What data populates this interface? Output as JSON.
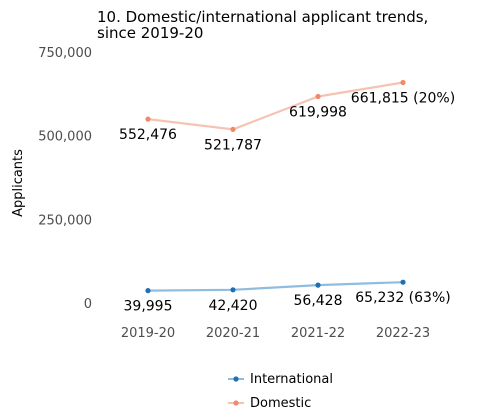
{
  "chart_data": {
    "type": "line",
    "title_lines": [
      "10. Domestic/international applicant trends,",
      "since 2019-20"
    ],
    "xlabel": "",
    "ylabel": "Applicants",
    "categories": [
      "2019-20",
      "2020-21",
      "2021-22",
      "2022-23"
    ],
    "ylim": [
      0,
      750000
    ],
    "yticks": [
      0,
      250000,
      500000,
      750000
    ],
    "ytick_labels": [
      "0",
      "250,000",
      "500,000",
      "750,000"
    ],
    "grid": false,
    "legend_position": "bottom-center",
    "series": [
      {
        "name": "International",
        "color": "#1f6fb2",
        "line_color": "#8fbde0",
        "values": [
          39995,
          42420,
          56428,
          65232
        ],
        "labels": [
          "39,995",
          "42,420",
          "56,428",
          "65,232 (63%)"
        ]
      },
      {
        "name": "Domestic",
        "color": "#f08a6a",
        "line_color": "#f6c2b2",
        "values": [
          552476,
          521787,
          619998,
          661815
        ],
        "labels": [
          "552,476",
          "521,787",
          "619,998",
          "661,815 (20%)"
        ]
      }
    ],
    "text_color": "#000000",
    "tick_color": "#4d4d4d"
  }
}
